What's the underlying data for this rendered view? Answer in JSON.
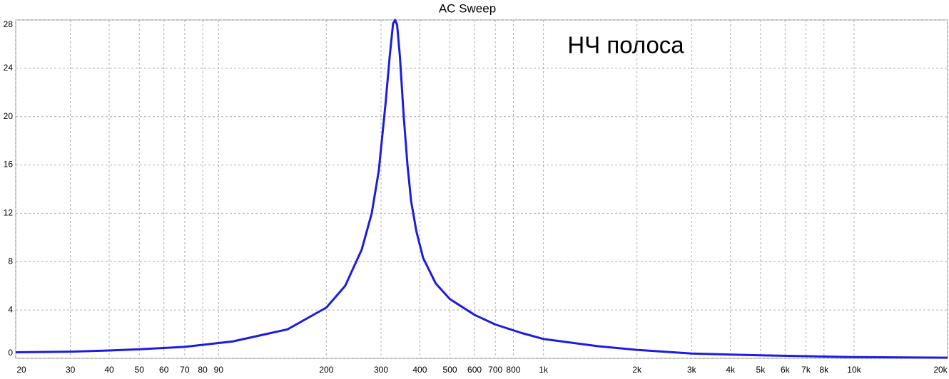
{
  "chart_data": {
    "type": "line",
    "title": "AC Sweep",
    "annotation": "НЧ полоса",
    "xscale": "log",
    "grid": true,
    "xlim": [
      20,
      20000
    ],
    "ylim": [
      0,
      28
    ],
    "xticks": [
      20,
      30,
      40,
      50,
      60,
      70,
      80,
      90,
      200,
      300,
      400,
      500,
      600,
      700,
      800,
      {
        "value": 1000,
        "label": "1k"
      },
      {
        "value": 2000,
        "label": "2k"
      },
      {
        "value": 3000,
        "label": "3k"
      },
      {
        "value": 4000,
        "label": "4k"
      },
      {
        "value": 5000,
        "label": "5k"
      },
      {
        "value": 6000,
        "label": "6k"
      },
      {
        "value": 7000,
        "label": "7k"
      },
      {
        "value": 8000,
        "label": "8k"
      },
      {
        "value": 10000,
        "label": "10k"
      },
      {
        "value": 20000,
        "label": "20k"
      }
    ],
    "yticks": [
      0,
      4,
      8,
      12,
      16,
      20,
      24,
      28
    ],
    "x": [
      20,
      30,
      40,
      50,
      70,
      100,
      150,
      200,
      230,
      260,
      280,
      295,
      310,
      320,
      328,
      333,
      338,
      345,
      355,
      365,
      375,
      390,
      410,
      450,
      500,
      600,
      700,
      850,
      1000,
      1500,
      2000,
      3000,
      5000,
      10000,
      20000
    ],
    "series": [
      {
        "color": "#1c1ce0",
        "values": [
          0.5,
          0.55,
          0.65,
          0.75,
          0.95,
          1.4,
          2.4,
          4.2,
          6.0,
          9.0,
          12.0,
          15.5,
          21,
          25,
          27.7,
          28,
          27.6,
          25,
          20,
          16,
          13,
          10.5,
          8.3,
          6.2,
          4.9,
          3.6,
          2.8,
          2.1,
          1.6,
          1.0,
          0.7,
          0.4,
          0.25,
          0.1,
          0.05
        ]
      }
    ]
  }
}
